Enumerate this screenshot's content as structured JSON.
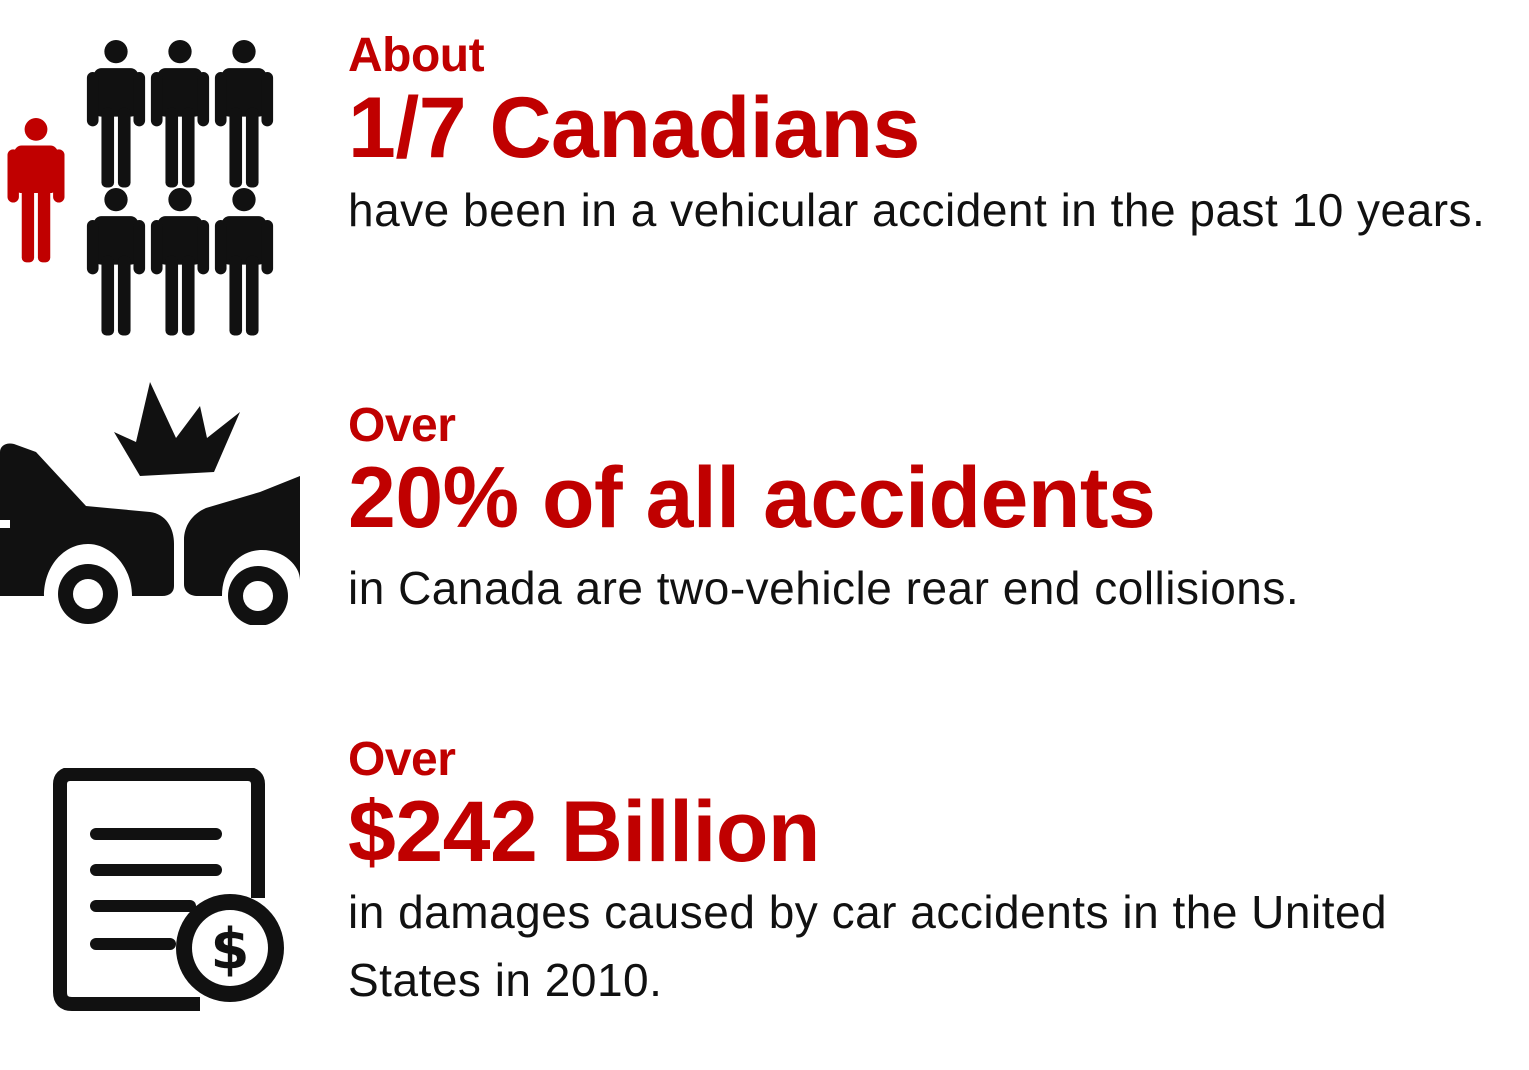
{
  "colors": {
    "accent": "#c00000",
    "text": "#111111",
    "icon": "#111111",
    "background": "#ffffff"
  },
  "stats": [
    {
      "icon": "people-group-icon",
      "qualifier": "About",
      "headline": "1/7 Canadians",
      "description": "have been in a vehicular accident in the past 10 years."
    },
    {
      "icon": "car-collision-icon",
      "qualifier": "Over",
      "headline": "20% of all accidents",
      "description": "in Canada are two-vehicle rear end collisions."
    },
    {
      "icon": "invoice-dollar-icon",
      "qualifier": "Over",
      "headline": "$242 Billion",
      "description": "in damages caused by car accidents in the United States in 2010."
    }
  ]
}
